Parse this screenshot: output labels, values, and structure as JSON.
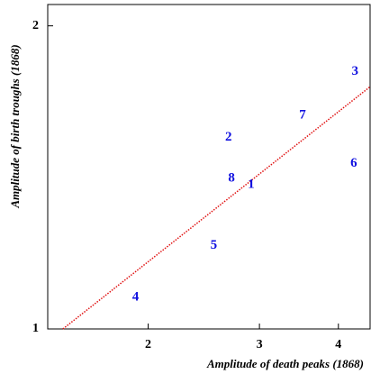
{
  "chart_data": {
    "type": "scatter",
    "xlabel": "Amplitude of death peaks (1868)",
    "ylabel": "Amplitude of birth troughs (1868)",
    "labels": [
      "1",
      "2",
      "3",
      "4",
      "5",
      "6",
      "7",
      "8"
    ],
    "x": [
      2.91,
      2.68,
      4.25,
      1.91,
      2.54,
      4.23,
      3.51,
      2.71
    ],
    "values": [
      1.39,
      1.55,
      1.8,
      1.075,
      1.21,
      1.46,
      1.63,
      1.41
    ],
    "color": "#1010e0",
    "fit_line": {
      "x": [
        1.466,
        4.49
      ],
      "y": [
        1,
        1.74
      ],
      "color": "#e01010"
    },
    "xlim": [
      1.387,
      4.49
    ],
    "ylim": [
      1,
      2.1
    ],
    "xticks": [
      2,
      3,
      4
    ],
    "yticks": [
      1,
      2
    ],
    "xscale": "log",
    "yscale": "log"
  }
}
